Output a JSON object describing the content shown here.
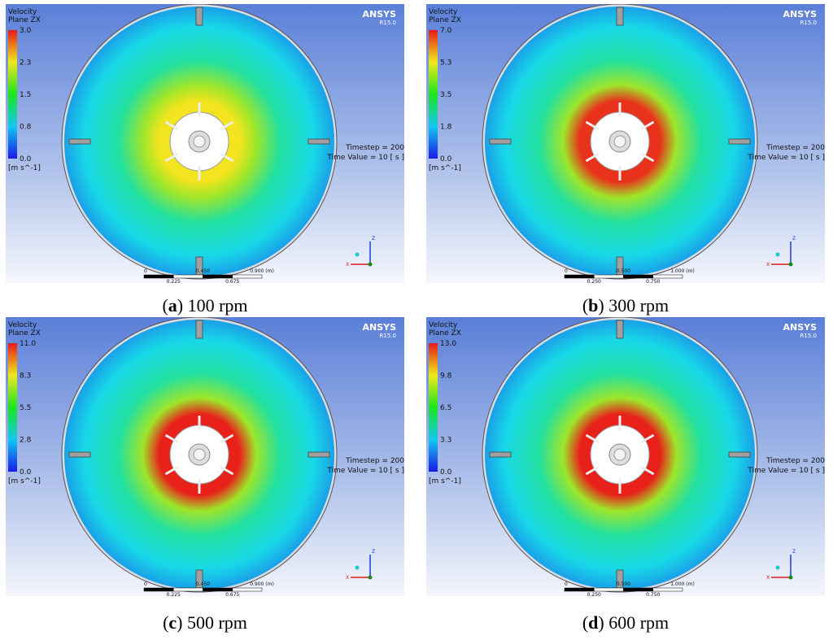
{
  "panels": [
    {
      "caption": [
        "(",
        "a",
        ") 100 rpm"
      ],
      "legend_title": [
        "Velocity",
        "Plane ZX"
      ],
      "legend_ticks": [
        "3.0",
        "2.3",
        "1.5",
        "0.8",
        "0.0"
      ],
      "unit": "[m s^-1]",
      "brand": "ANSYS",
      "version": "R15.0",
      "timestep": "Timestep = 200",
      "time_value": "Time Value = 10 [ s ]",
      "scale_top": [
        "0",
        "0.450",
        "0.900 (m)"
      ],
      "scale_bottom": [
        "0.225",
        "0.675"
      ],
      "axes": [
        "Z",
        "X"
      ],
      "core_color": "#f2e41e"
    },
    {
      "caption": [
        "(",
        "b",
        ") 300 rpm"
      ],
      "legend_title": [
        "Velocity",
        "Plane ZX"
      ],
      "legend_ticks": [
        "7.0",
        "5.3",
        "3.5",
        "1.8",
        "0.0"
      ],
      "unit": "[m s^-1]",
      "brand": "ANSYS",
      "version": "R15.0",
      "timestep": "Timestep = 200",
      "time_value": "Time Value = 10 [ s ]",
      "scale_top": [
        "0",
        "0.500",
        "1.000 (m)"
      ],
      "scale_bottom": [
        "0.250",
        "0.750"
      ],
      "axes": [
        "Z",
        "X"
      ],
      "core_color": "#e8321c"
    },
    {
      "caption": [
        "(",
        "c",
        ") 500 rpm"
      ],
      "legend_title": [
        "Velocity",
        "Plane ZX"
      ],
      "legend_ticks": [
        "11.0",
        "8.3",
        "5.5",
        "2.8",
        "0.0"
      ],
      "unit": "[m s^-1]",
      "brand": "ANSYS",
      "version": "R15.0",
      "timestep": "Timestep = 200",
      "time_value": "Time Value = 10 [ s ]",
      "scale_top": [
        "0",
        "0.450",
        "0.900 (m)"
      ],
      "scale_bottom": [
        "0.225",
        "0.675"
      ],
      "axes": [
        "Z",
        "X"
      ],
      "core_color": "#e8221a"
    },
    {
      "caption": [
        "(",
        "d",
        ") 600 rpm"
      ],
      "legend_title": [
        "Velocity",
        "Plane ZX"
      ],
      "legend_ticks": [
        "13.0",
        "9.8",
        "6.5",
        "3.3",
        "0.0"
      ],
      "unit": "[m s^-1]",
      "brand": "ANSYS",
      "version": "R15.0",
      "timestep": "Timestep = 200",
      "time_value": "Time Value = 10 [ s ]",
      "scale_top": [
        "0",
        "0.500",
        "1.000 (m)"
      ],
      "scale_bottom": [
        "0.250",
        "0.750"
      ],
      "axes": [
        "Z",
        "X"
      ],
      "core_color": "#e8221a"
    }
  ]
}
